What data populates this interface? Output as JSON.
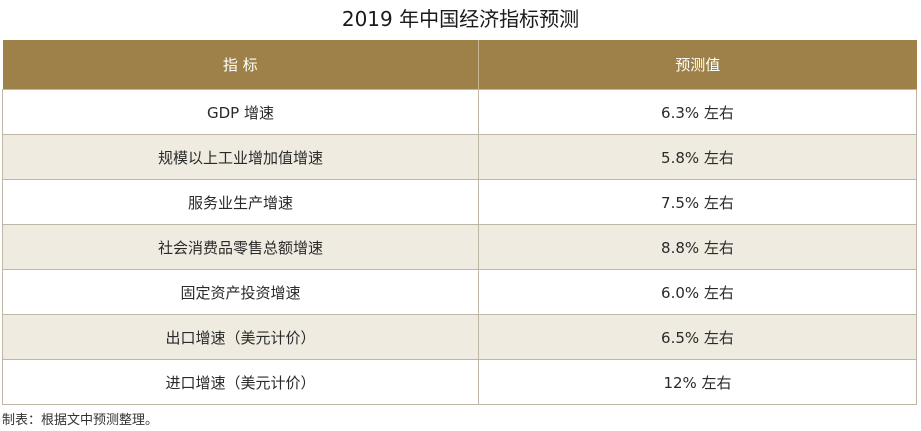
{
  "title": "2019 年中国经济指标预测",
  "table": {
    "headers": [
      "指  标",
      "预测值"
    ],
    "rows": [
      {
        "indicator": "GDP 增速",
        "value": "6.3% 左右"
      },
      {
        "indicator": "规模以上工业增加值增速",
        "value": "5.8% 左右"
      },
      {
        "indicator": "服务业生产增速",
        "value": "7.5% 左右"
      },
      {
        "indicator": "社会消费品零售总额增速",
        "value": "8.8% 左右"
      },
      {
        "indicator": "固定资产投资增速",
        "value": "6.0% 左右"
      },
      {
        "indicator": "出口增速（美元计价）",
        "value": "6.5% 左右"
      },
      {
        "indicator": "进口增速（美元计价）",
        "value": "12% 左右"
      }
    ]
  },
  "source": "制表：根据文中预测整理。"
}
